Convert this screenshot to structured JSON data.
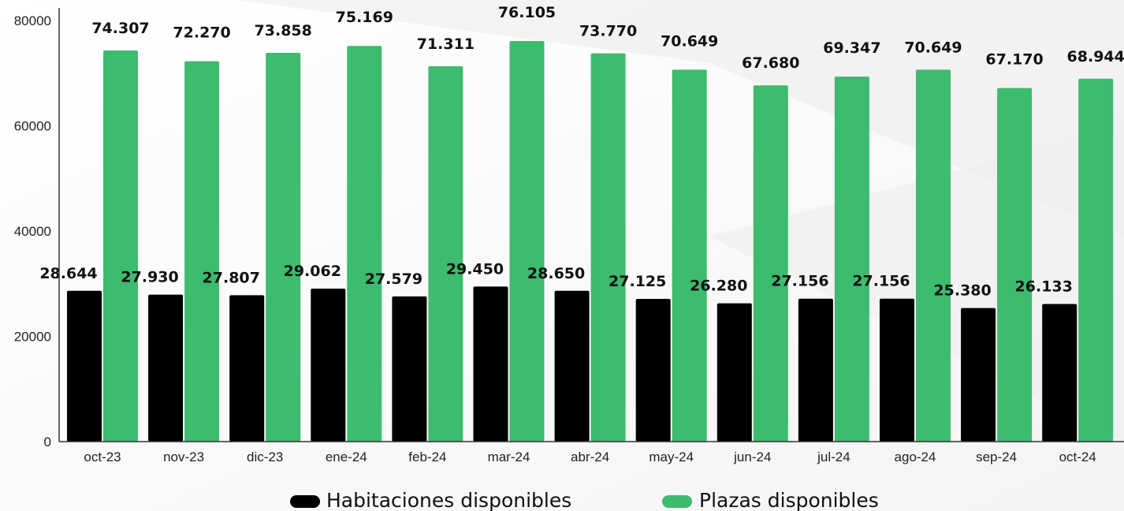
{
  "chart_data": {
    "type": "bar",
    "categories": [
      "oct-23",
      "nov-23",
      "dic-23",
      "ene-24",
      "feb-24",
      "mar-24",
      "abr-24",
      "may-24",
      "jun-24",
      "jul-24",
      "ago-24",
      "sep-24",
      "oct-24"
    ],
    "series": [
      {
        "name": "Habitaciones disponibles",
        "color": "#000000",
        "values": [
          28644,
          27930,
          27807,
          29062,
          27579,
          29450,
          28650,
          27125,
          26280,
          27156,
          27156,
          25380,
          26133
        ],
        "labels": [
          "28.644",
          "27.930",
          "27.807",
          "29.062",
          "27.579",
          "29.450",
          "28.650",
          "27.125",
          "26.280",
          "27.156",
          "27.156",
          "25.380",
          "26.133"
        ]
      },
      {
        "name": "Plazas disponibles",
        "color": "#3dbb6e",
        "values": [
          74307,
          72270,
          73858,
          75169,
          71311,
          76105,
          73770,
          70649,
          67680,
          69347,
          70649,
          67170,
          68944
        ],
        "labels": [
          "74.307",
          "72.270",
          "73.858",
          "75.169",
          "71.311",
          "76.105",
          "73.770",
          "70.649",
          "67.680",
          "69.347",
          "70.649",
          "67.170",
          "68.944"
        ]
      }
    ],
    "yticks": [
      "0",
      "20000",
      "40000",
      "60000",
      "80000"
    ],
    "ylim": [
      0,
      80000
    ],
    "legend_position": "bottom",
    "grid": false
  }
}
